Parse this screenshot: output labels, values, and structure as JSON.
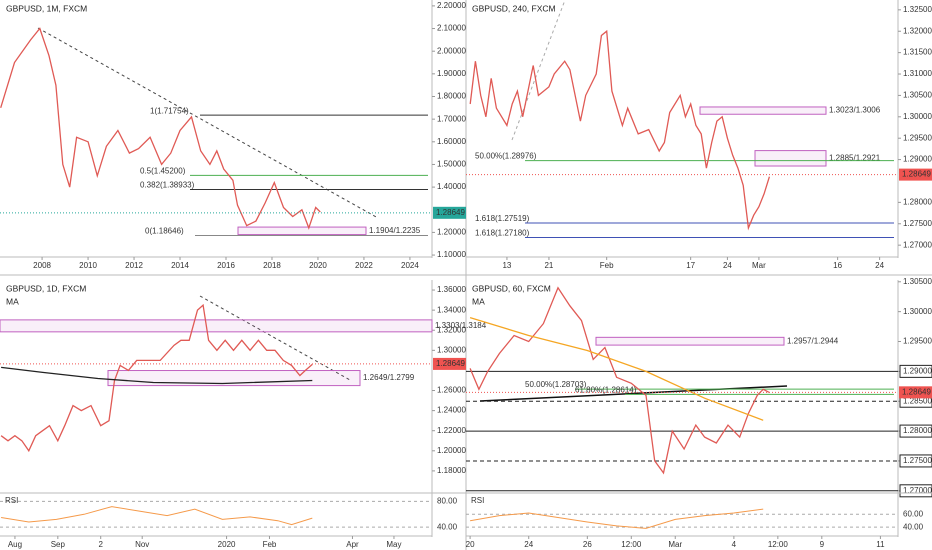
{
  "panels": [
    {
      "title": "GBPUSD, 1M, FXCM",
      "ylim": [
        1.087,
        2.226
      ],
      "xlim": [
        2006.17,
        2024.96
      ],
      "yticks": [
        {
          "value": 2.2,
          "label": "2.20000"
        },
        {
          "value": 2.1,
          "label": "2.10000"
        },
        {
          "value": 2.0,
          "label": "2.00000"
        },
        {
          "value": 1.9,
          "label": "1.90000"
        },
        {
          "value": 1.8,
          "label": "1.80000"
        },
        {
          "value": 1.7,
          "label": "1.70000"
        },
        {
          "value": 1.6,
          "label": "1.60000"
        },
        {
          "value": 1.5,
          "label": "1.50000"
        },
        {
          "value": 1.4,
          "label": "1.40000"
        },
        {
          "value": 1.2,
          "label": "1.20000"
        },
        {
          "value": 1.1,
          "label": "1.10000"
        }
      ],
      "xticks": [
        2008,
        2010,
        2012,
        2014,
        2016,
        2018,
        2020,
        2022,
        2024
      ],
      "series": [
        {
          "color": "#e05a55",
          "x": [
            2006.2,
            2006.8,
            2007.5,
            2007.9,
            2008.3,
            2008.6,
            2008.9,
            2009.2,
            2009.5,
            2010.0,
            2010.4,
            2010.8,
            2011.3,
            2011.8,
            2012.2,
            2012.7,
            2013.2,
            2013.6,
            2014.0,
            2014.5,
            2014.9,
            2015.3,
            2015.6,
            2015.9,
            2016.3,
            2016.5,
            2016.9,
            2017.3,
            2017.7,
            2018.1,
            2018.5,
            2018.9,
            2019.3,
            2019.6,
            2019.9,
            2020.1
          ],
          "values": [
            1.75,
            1.95,
            2.05,
            2.1,
            1.98,
            1.85,
            1.5,
            1.4,
            1.62,
            1.6,
            1.45,
            1.58,
            1.65,
            1.55,
            1.57,
            1.62,
            1.5,
            1.55,
            1.65,
            1.71,
            1.56,
            1.5,
            1.56,
            1.48,
            1.43,
            1.32,
            1.23,
            1.25,
            1.33,
            1.42,
            1.31,
            1.27,
            1.3,
            1.22,
            1.31,
            1.29
          ]
        }
      ],
      "price": 1.28649,
      "price_color": "#26a69a",
      "levels": [
        {
          "label": "1(1.71754)",
          "value": 1.71754,
          "color": "#333"
        },
        {
          "label": "0.5(1.45200)",
          "value": 1.452,
          "color": "#4caf50"
        },
        {
          "label": "0.382(1.38933)",
          "value": 1.38933,
          "color": "#333"
        },
        {
          "label": "0(1.18646)",
          "value": 1.18646,
          "color": "#888"
        }
      ],
      "zones": [
        {
          "label": "1.1904/1.2235",
          "low": 1.1904,
          "high": 1.2235,
          "color": "#c060c0"
        }
      ]
    },
    {
      "title": "GBPUSD, 240, FXCM",
      "ylim": [
        1.267,
        1.3273
      ],
      "xlim": [
        5.2,
        87.5
      ],
      "yticks": [
        {
          "value": 1.325,
          "label": "1.32500"
        },
        {
          "value": 1.32,
          "label": "1.32000"
        },
        {
          "value": 1.315,
          "label": "1.31500"
        },
        {
          "value": 1.31,
          "label": "1.31000"
        },
        {
          "value": 1.305,
          "label": "1.30500"
        },
        {
          "value": 1.3,
          "label": "1.30000"
        },
        {
          "value": 1.295,
          "label": "1.29500"
        },
        {
          "value": 1.29,
          "label": "1.29000"
        },
        {
          "value": 1.28,
          "label": "1.28000"
        },
        {
          "value": 1.275,
          "label": "1.27500"
        },
        {
          "value": 1.27,
          "label": "1.27000"
        }
      ],
      "xticks": [
        {
          "value": 13,
          "label": "13"
        },
        {
          "value": 21,
          "label": "21"
        },
        {
          "value": 32,
          "label": "Feb"
        },
        {
          "value": 48,
          "label": "17"
        },
        {
          "value": 55,
          "label": "24"
        },
        {
          "value": 61,
          "label": "Mar"
        },
        {
          "value": 76,
          "label": "16"
        },
        {
          "value": 84,
          "label": "24"
        }
      ],
      "series": [
        {
          "color": "#e05a55",
          "x": [
            6,
            7,
            8,
            9,
            10,
            11,
            13,
            14,
            15,
            16,
            18,
            19,
            21,
            22,
            24,
            25,
            27,
            28,
            30,
            31,
            32,
            33,
            35,
            36,
            38,
            40,
            42,
            43,
            44,
            46,
            47,
            48,
            49,
            50,
            51,
            52,
            53,
            54,
            55,
            56,
            57,
            58,
            59,
            60,
            61,
            62,
            63
          ],
          "values": [
            1.303,
            1.313,
            1.305,
            1.3,
            1.309,
            1.302,
            1.298,
            1.303,
            1.306,
            1.3,
            1.312,
            1.305,
            1.307,
            1.31,
            1.313,
            1.311,
            1.299,
            1.305,
            1.31,
            1.319,
            1.32,
            1.306,
            1.298,
            1.302,
            1.296,
            1.297,
            1.292,
            1.294,
            1.301,
            1.305,
            1.3,
            1.303,
            1.298,
            1.296,
            1.288,
            1.294,
            1.299,
            1.3,
            1.295,
            1.291,
            1.288,
            1.284,
            1.274,
            1.277,
            1.279,
            1.282,
            1.286
          ]
        }
      ],
      "price": 1.28649,
      "price_color": "#ef5350",
      "levels": [
        {
          "label": "50.00%(1.28976)",
          "value": 1.28976,
          "color": "#4caf50"
        },
        {
          "label": "1.618(1.27519)",
          "value": 1.27519,
          "color": "#3f51b5"
        },
        {
          "label": "1.618(1.27180)",
          "value": 1.2718,
          "color": "#3f51b5"
        }
      ],
      "zones": [
        {
          "label": "1.3023/1.3006",
          "low": 1.3006,
          "high": 1.3023,
          "color": "#c060c0"
        },
        {
          "label": "1.2885/1.2921",
          "low": 1.2885,
          "high": 1.2921,
          "color": "#c060c0"
        }
      ]
    },
    {
      "title": "GBPUSD, 1D, FXCM",
      "ylim": [
        1.159,
        1.37
      ],
      "xlim": [
        -10.8,
        301.5
      ],
      "yticks": [
        {
          "value": 1.36,
          "label": "1.36000"
        },
        {
          "value": 1.34,
          "label": "1.34000"
        },
        {
          "value": 1.32,
          "label": "1.32000"
        },
        {
          "value": 1.3,
          "label": "1.30000"
        },
        {
          "value": 1.26,
          "label": "1.26000"
        },
        {
          "value": 1.24,
          "label": "1.24000"
        },
        {
          "value": 1.22,
          "label": "1.22000"
        },
        {
          "value": 1.2,
          "label": "1.20000"
        },
        {
          "value": 1.18,
          "label": "1.18000"
        }
      ],
      "xticks": [
        {
          "value": 0,
          "label": "Aug"
        },
        {
          "value": 31,
          "label": "Sep"
        },
        {
          "value": 62,
          "label": "2"
        },
        {
          "value": 92,
          "label": "Nov"
        },
        {
          "value": 153,
          "label": "2020"
        },
        {
          "value": 184,
          "label": "Feb"
        },
        {
          "value": 244,
          "label": "Apr"
        },
        {
          "value": 274,
          "label": "May"
        }
      ],
      "series": [
        {
          "color": "#e05a55",
          "x": [
            -10,
            -5,
            0,
            5,
            10,
            15,
            20,
            25,
            31,
            36,
            42,
            48,
            55,
            62,
            68,
            72,
            76,
            82,
            88,
            95,
            105,
            115,
            120,
            126,
            132,
            136,
            140,
            146,
            152,
            158,
            164,
            170,
            176,
            182,
            188,
            194,
            200,
            206,
            210,
            215
          ],
          "values": [
            1.215,
            1.21,
            1.215,
            1.21,
            1.2,
            1.215,
            1.22,
            1.225,
            1.21,
            1.225,
            1.245,
            1.24,
            1.245,
            1.225,
            1.23,
            1.27,
            1.285,
            1.28,
            1.29,
            1.29,
            1.29,
            1.305,
            1.31,
            1.31,
            1.34,
            1.345,
            1.31,
            1.3,
            1.31,
            1.3,
            1.31,
            1.3,
            1.31,
            1.3,
            1.3,
            1.29,
            1.285,
            1.275,
            1.28,
            1.286
          ]
        },
        {
          "name": "MA",
          "color": "#222",
          "x": [
            -10,
            20,
            60,
            100,
            150,
            215
          ],
          "values": [
            1.283,
            1.278,
            1.272,
            1.268,
            1.267,
            1.27
          ]
        }
      ],
      "price": 1.28649,
      "price_color": "#ef5350",
      "levels": [],
      "zones": [
        {
          "label": "1.3303/1.3184",
          "low": 1.3184,
          "high": 1.3303,
          "color": "#c060c0"
        },
        {
          "label": "1.2649/1.2799",
          "low": 1.2649,
          "high": 1.2799,
          "color": "#c060c0"
        }
      ],
      "rsi": {
        "label": "RSI",
        "ylim": [
          20,
          90
        ],
        "yticks": [
          {
            "value": 80,
            "label": "80.00"
          },
          {
            "value": 40,
            "label": "40.00"
          }
        ],
        "x": [
          -10,
          10,
          30,
          50,
          70,
          90,
          110,
          130,
          150,
          170,
          190,
          200,
          215
        ],
        "values": [
          55,
          48,
          52,
          60,
          72,
          65,
          58,
          68,
          52,
          56,
          50,
          44,
          54
        ]
      }
    },
    {
      "title": "GBPUSD, 60, FXCM",
      "ylim": [
        1.2698,
        1.3053
      ],
      "xlim": [
        -0.14,
        14.6
      ],
      "yticks": [
        {
          "value": 1.305,
          "label": "1.30500"
        },
        {
          "value": 1.3,
          "label": "1.30000"
        },
        {
          "value": 1.295,
          "label": "1.29500"
        },
        {
          "value": 1.29,
          "label": "1.29000",
          "boxed": true
        },
        {
          "value": 1.285,
          "label": "1.28500",
          "boxed": true
        },
        {
          "value": 1.28,
          "label": "1.28000",
          "boxed": true
        },
        {
          "value": 1.275,
          "label": "1.27500",
          "boxed": true
        },
        {
          "value": 1.27,
          "label": "1.27000",
          "boxed": true
        }
      ],
      "xticks": [
        {
          "value": 0,
          "label": "20"
        },
        {
          "value": 2,
          "label": "24"
        },
        {
          "value": 4,
          "label": "26"
        },
        {
          "value": 5.5,
          "label": "12:00"
        },
        {
          "value": 7,
          "label": "Mar"
        },
        {
          "value": 9,
          "label": "4"
        },
        {
          "value": 10.5,
          "label": "12:00"
        },
        {
          "value": 12,
          "label": "9"
        },
        {
          "value": 14,
          "label": "11"
        }
      ],
      "series": [
        {
          "color": "#e05a55",
          "x": [
            0,
            0.3,
            0.6,
            1,
            1.5,
            2,
            2.5,
            3,
            3.4,
            3.8,
            4.2,
            4.6,
            5,
            5.5,
            6,
            6.3,
            6.6,
            6.9,
            7.3,
            7.7,
            8,
            8.4,
            8.8,
            9.2,
            9.5,
            9.8,
            10,
            10.2
          ],
          "values": [
            1.2905,
            1.287,
            1.29,
            1.293,
            1.296,
            1.295,
            1.298,
            1.304,
            1.301,
            1.2985,
            1.292,
            1.294,
            1.289,
            1.288,
            1.286,
            1.275,
            1.273,
            1.28,
            1.277,
            1.281,
            1.279,
            1.278,
            1.281,
            1.279,
            1.283,
            1.286,
            1.287,
            1.2865
          ]
        },
        {
          "name": "MA",
          "color": "#f5a623",
          "x": [
            0,
            2,
            4,
            6,
            8,
            10
          ],
          "values": [
            1.299,
            1.296,
            1.2935,
            1.29,
            1.2855,
            1.2818
          ]
        }
      ],
      "price": 1.28649,
      "price_color": "#ef5350",
      "levels": [
        {
          "label": "50.00%(1.28703)",
          "value": 1.28703,
          "color": "#4caf50"
        },
        {
          "label": "61.80%(1.28614)",
          "value": 1.28614,
          "color": "#4caf50"
        }
      ],
      "zones": [
        {
          "label": "1.2957/1.2944",
          "low": 1.2944,
          "high": 1.2957,
          "color": "#c060c0"
        }
      ],
      "rsi": {
        "label": "RSI",
        "ylim": [
          20,
          90
        ],
        "yticks": [
          {
            "value": 60,
            "label": "60.00"
          },
          {
            "value": 40,
            "label": "40.00"
          }
        ],
        "x": [
          0,
          1,
          2,
          3,
          4,
          5,
          6,
          7,
          8,
          9,
          10
        ],
        "values": [
          50,
          58,
          62,
          55,
          48,
          42,
          38,
          52,
          58,
          62,
          68
        ]
      }
    }
  ]
}
